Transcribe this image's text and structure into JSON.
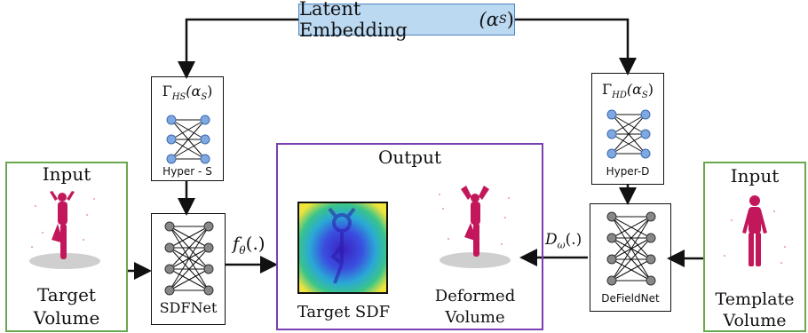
{
  "latent": {
    "label": "Latent Embedding",
    "symbol": "(α",
    "sub": "S",
    "close": ")"
  },
  "hyper_s": {
    "func": "Γ",
    "func_sub": "HS",
    "arg": "(α",
    "arg_sub": "S",
    "arg_close": ")",
    "caption": "Hyper - S"
  },
  "hyper_d": {
    "func": "Γ",
    "func_sub": "HD",
    "arg": "(α",
    "arg_sub": "S",
    "arg_close": ")",
    "caption": "Hyper-D"
  },
  "sdfnet": {
    "caption": "SDFNet"
  },
  "defieldnet": {
    "caption": "DeFieldNet"
  },
  "input_left": {
    "title": "Input",
    "caption_line1": "Target",
    "caption_line2": "Volume"
  },
  "input_right": {
    "title": "Input",
    "caption_line1": "Template",
    "caption_line2": "Volume"
  },
  "output": {
    "title": "Output",
    "sdf_caption": "Target SDF",
    "deformed_line1": "Deformed",
    "deformed_line2": "Volume"
  },
  "f_theta": {
    "f": "f",
    "sub": "θ",
    "arg": "(.)"
  },
  "d_omega": {
    "d": "D",
    "sub": "ω",
    "arg": "(.)"
  },
  "colors": {
    "green_border": "#6aa84f",
    "purple_border": "#7a3fb0",
    "latent_fill": "#bcd9f2",
    "node_blue": "#7fa8e0",
    "node_gray": "#888888",
    "figure_pink": "#c2185b"
  }
}
